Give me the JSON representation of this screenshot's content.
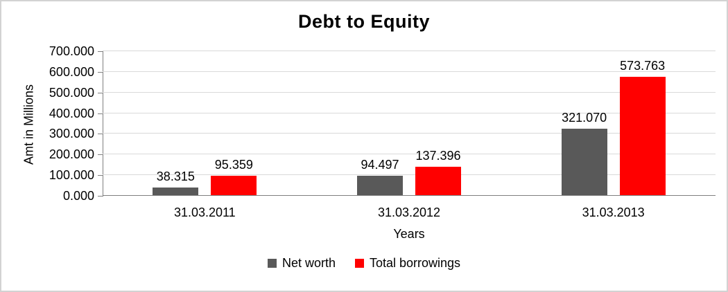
{
  "chart_data": {
    "type": "bar",
    "title": "Debt to Equity",
    "xlabel": "Years",
    "ylabel": "Amt  in Millions",
    "ylim": [
      0,
      700000
    ],
    "yticks": [
      "0.000",
      "100.000",
      "200.000",
      "300.000",
      "400.000",
      "500.000",
      "600.000",
      "700.000"
    ],
    "categories": [
      "31.03.2011",
      "31.03.2012",
      "31.03.2013"
    ],
    "series": [
      {
        "name": "Net worth",
        "color": "#595959",
        "values": [
          38315,
          94497,
          321070
        ],
        "labels": [
          "38.315",
          "94.497",
          "321.070"
        ]
      },
      {
        "name": "Total borrowings",
        "color": "#ff0000",
        "values": [
          95359,
          137396,
          573763
        ],
        "labels": [
          "95.359",
          "137.396",
          "573.763"
        ]
      }
    ],
    "grid": true,
    "legend_position": "bottom"
  }
}
